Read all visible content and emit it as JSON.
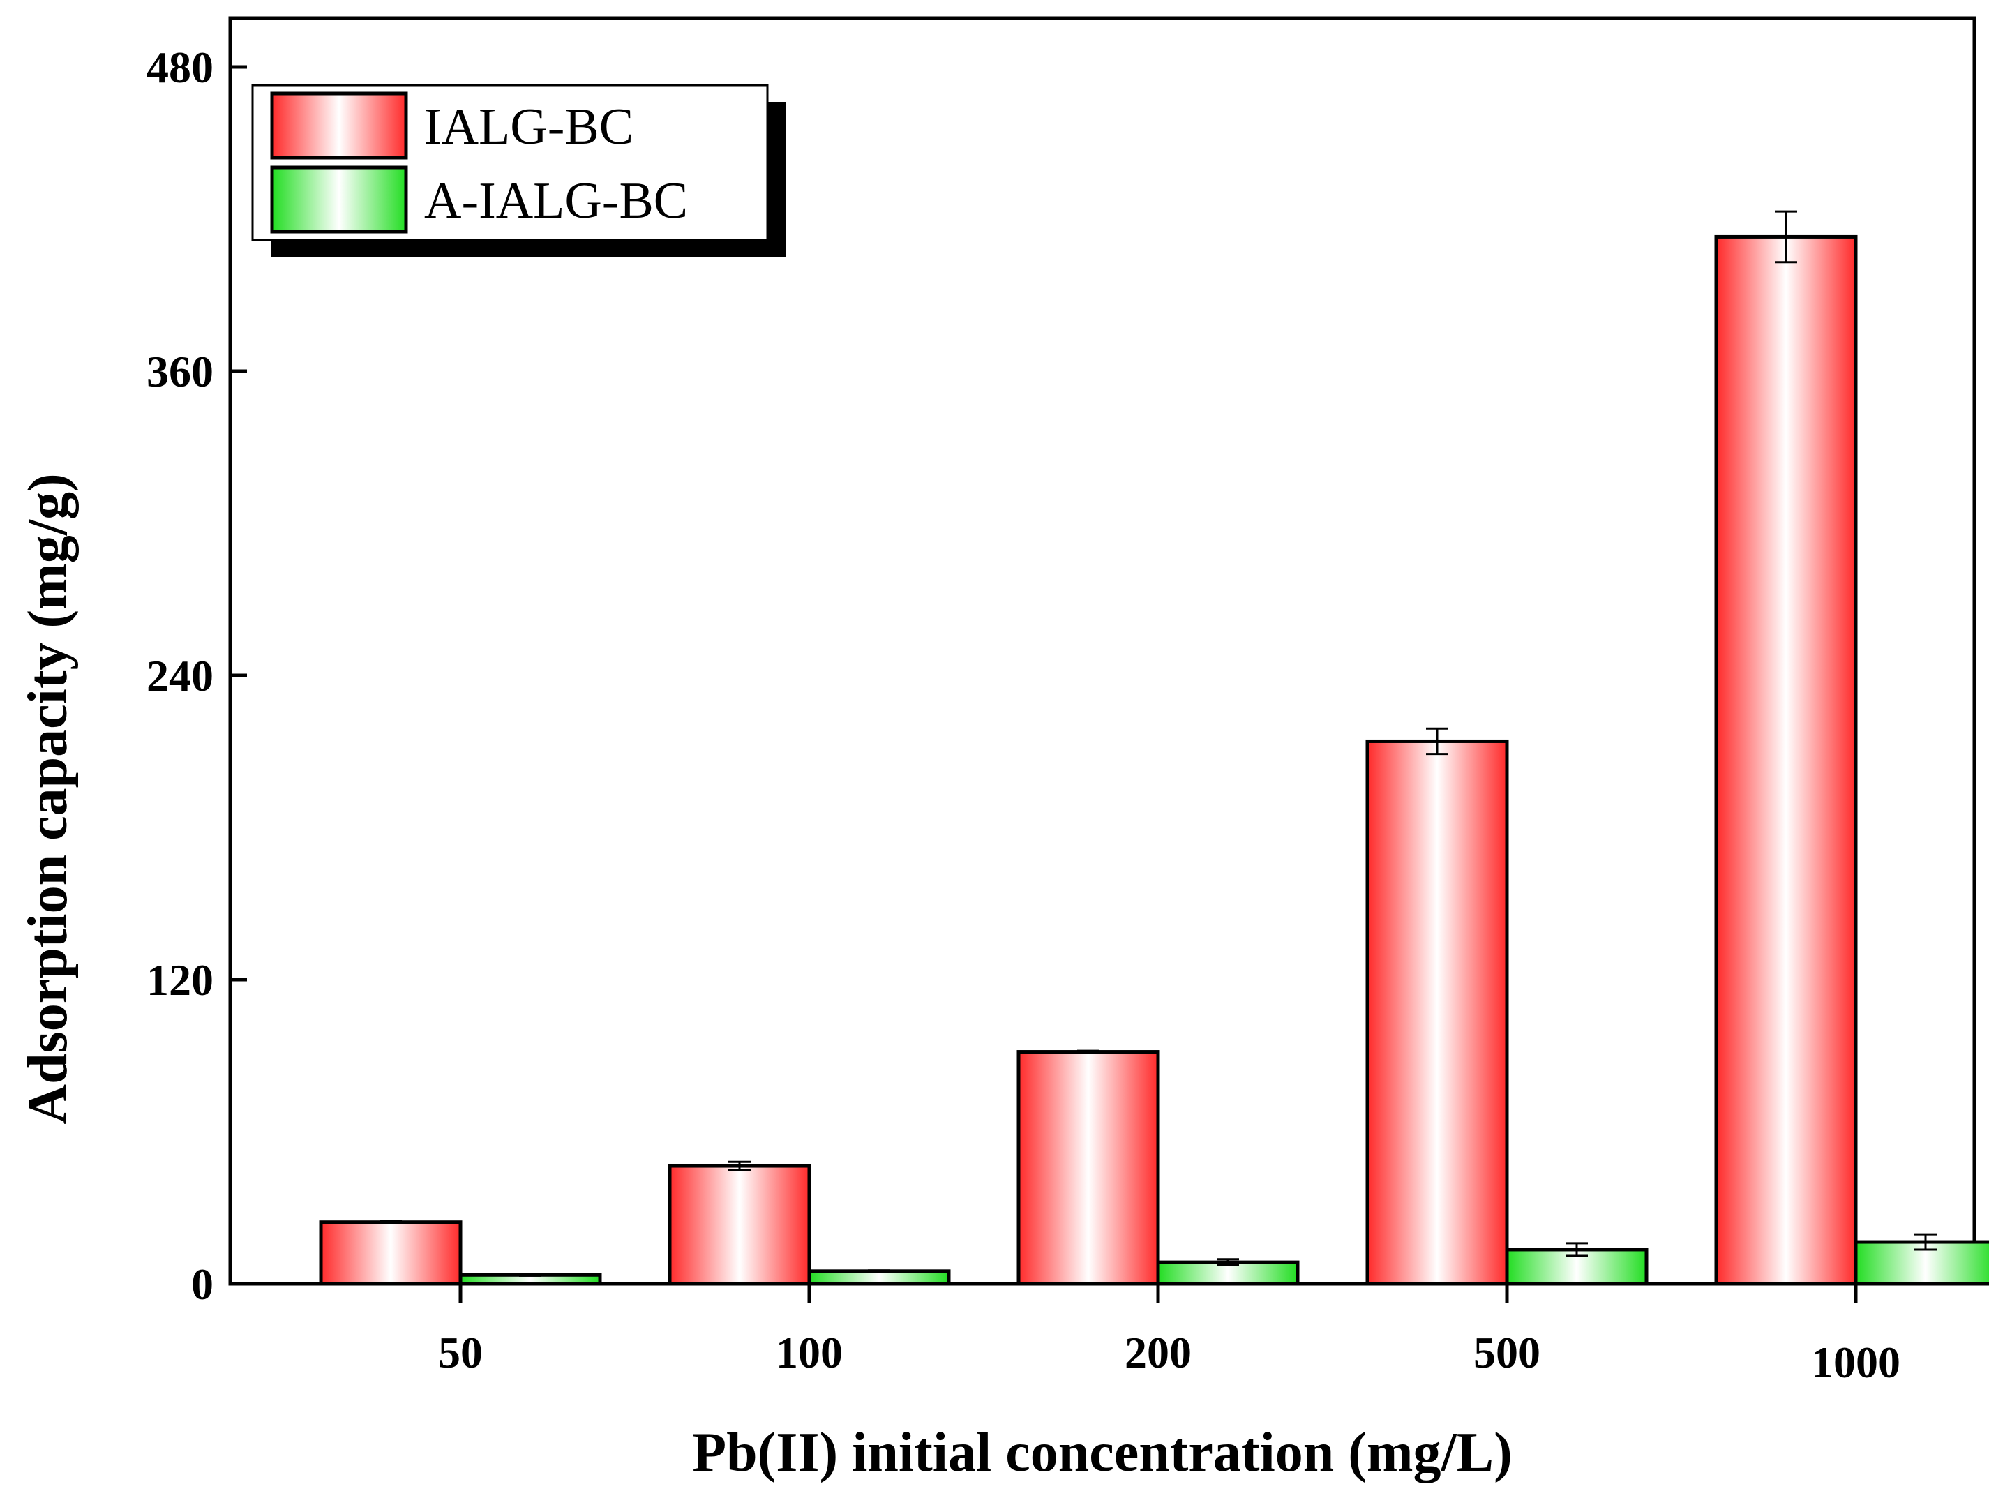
{
  "chart_data": {
    "type": "bar",
    "title": "",
    "xlabel": "Pb(II) initial concentration (mg/L)",
    "ylabel": "Adsorption capacity (mg/g)",
    "categories": [
      "50",
      "100",
      "200",
      "500",
      "1000"
    ],
    "ylim": [
      0,
      480
    ],
    "yticks": [
      0,
      120,
      240,
      360,
      480
    ],
    "grid": false,
    "legend_position": "top-left",
    "series": [
      {
        "name": "IALG-BC",
        "color": "#ff2a2a",
        "values": [
          24.3,
          46.5,
          91.5,
          214,
          413
        ],
        "errors": [
          0.4,
          1.6,
          0.4,
          5,
          10
        ]
      },
      {
        "name": "A-IALG-BC",
        "color": "#22dd22",
        "values": [
          3.5,
          5,
          8.5,
          13.5,
          16.5
        ],
        "errors": [
          0.3,
          0.3,
          1.2,
          2.5,
          3
        ]
      }
    ]
  }
}
